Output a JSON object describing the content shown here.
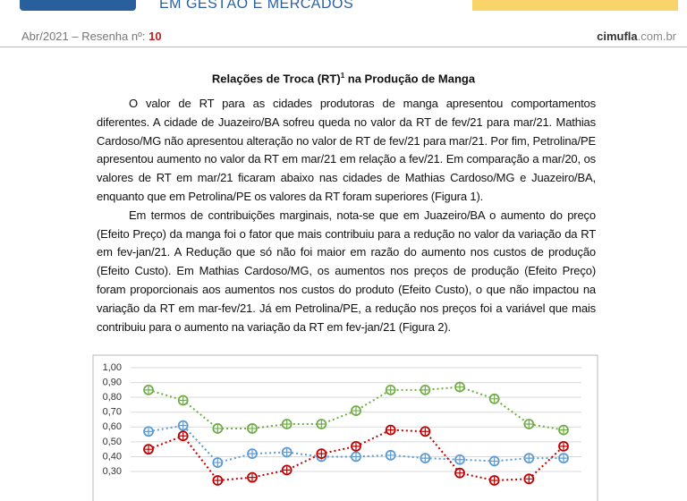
{
  "header": {
    "subtitle": "EM GESTÃO E MERCADOS",
    "issue_line": "Abr/2021 – Resenha nº:",
    "issue_number": "10",
    "site_name": "cimufla",
    "site_domain": ".com.br"
  },
  "article": {
    "title": "Relações de Troca (RT)",
    "title_note": "1",
    "title_suffix": " na Produção de Manga",
    "paragraphs": [
      "O valor de RT para as cidades produtoras de manga apresentou comportamentos diferentes. A cidade de Juazeiro/BA sofreu queda no valor da RT de fev/21 para mar/21. Mathias Cardoso/MG não apresentou alteração no valor de RT de fev/21 para mar/21. Por fim, Petrolina/PE apresentou aumento no valor da RT em mar/21 em relação a fev/21. Em comparação a mar/20, os valores de RT em mar/21 ficaram abaixo nas cidades de Mathias Cardoso/MG e Juazeiro/BA, enquanto que em Petrolina/PE os valores da RT foram superiores (Figura 1).",
      "Em termos de contribuições marginais, nota-se que em Juazeiro/BA o aumento do preço (Efeito Preço) da manga foi o fator que mais contribuiu para a redução no valor da variação da RT em fev-jan/21. A Redução que só não foi maior em razão do aumento nos custos de produção (Efeito Custo). Em Mathias Cardoso/MG, os aumentos nos preços de produção (Efeito Preço) foram proporcionais aos aumentos nos custos do produto (Efeito Custo), o que não impactou na variação da RT em mar-fev/21. Já em Petrolina/PE, a redução nos preços foi a variável que mais contribuiu para o aumento na variação da RT em fev-jan/21 (Figura 2)."
    ]
  },
  "chart_data": {
    "type": "line",
    "grid": true,
    "ylim": [
      0.2,
      1.0
    ],
    "yticks": [
      {
        "value": 0.3,
        "label": "0,30"
      },
      {
        "value": 0.4,
        "label": "0,40"
      },
      {
        "value": 0.5,
        "label": "0,50"
      },
      {
        "value": 0.6,
        "label": "0,60"
      },
      {
        "value": 0.7,
        "label": "0,70"
      },
      {
        "value": 0.8,
        "label": "0,80"
      },
      {
        "value": 0.9,
        "label": "0,90"
      },
      {
        "value": 1.0,
        "label": "1,00"
      }
    ],
    "series": [
      {
        "color": "#70ad47",
        "values": [
          0.85,
          0.78,
          0.59,
          0.59,
          0.62,
          0.62,
          0.71,
          0.85,
          0.85,
          0.87,
          0.79,
          0.62,
          0.58
        ]
      },
      {
        "color": "#5b9bd5",
        "values": [
          0.57,
          0.61,
          0.36,
          0.42,
          0.43,
          0.4,
          0.4,
          0.41,
          0.39,
          0.38,
          0.37,
          0.39,
          0.39
        ]
      },
      {
        "color": "#c00000",
        "values": [
          0.45,
          0.54,
          0.24,
          0.26,
          0.31,
          0.42,
          0.47,
          0.58,
          0.57,
          0.29,
          0.24,
          0.25,
          0.47
        ]
      }
    ]
  }
}
